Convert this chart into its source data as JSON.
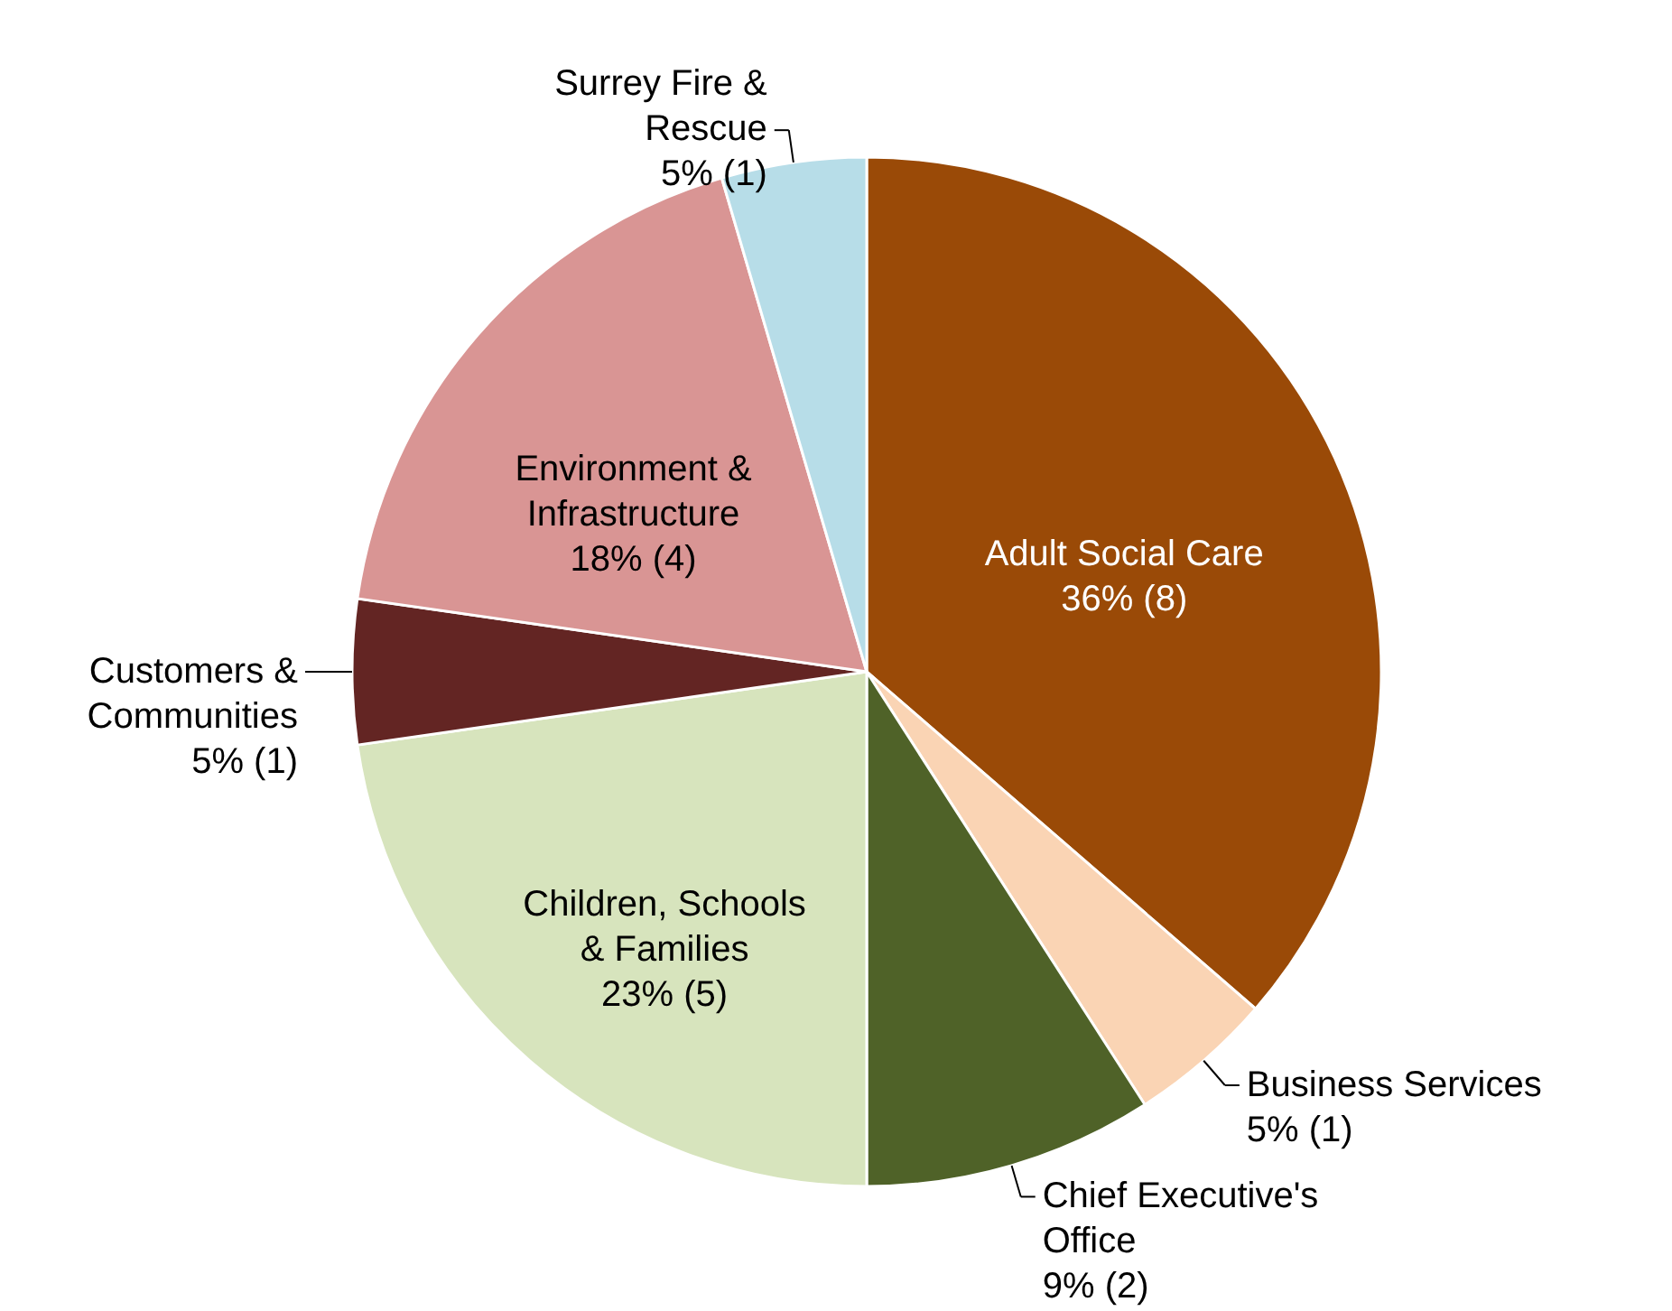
{
  "chart_data": {
    "type": "pie",
    "categories": [
      "Adult Social Care",
      "Business Services",
      "Chief Executive's Office",
      "Children, Schools & Families",
      "Customers & Communities",
      "Environment & Infrastructure",
      "Surrey Fire & Rescue"
    ],
    "values": [
      8,
      1,
      2,
      5,
      1,
      4,
      1
    ],
    "value_labels": [
      "36% (8)",
      "5% (1)",
      "9% (2)",
      "23% (5)",
      "5% (1)",
      "18% (4)",
      "5% (1)"
    ],
    "colors": [
      "#9a4a07",
      "#fad4b4",
      "#4f6228",
      "#d7e4bd",
      "#632523",
      "#d99594",
      "#b7dde8"
    ]
  }
}
